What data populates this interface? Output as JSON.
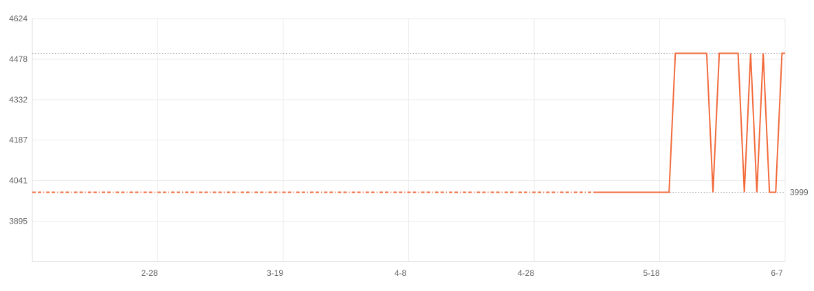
{
  "page": {
    "background_color": "#ffffff"
  },
  "chart_data": {
    "type": "line",
    "title": "",
    "xlabel": "",
    "ylabel": "",
    "grid": true,
    "legend": "none",
    "colors": {
      "line": "#f2693a",
      "grid_line": "#ebebeb",
      "axis_line": "#dcdcdc",
      "reference_line": "#999999",
      "tick_label": "#666666"
    },
    "y_axis": {
      "min": 3749,
      "max": 4624,
      "ticks": [
        {
          "label": "4624",
          "value": 4624
        },
        {
          "label": "4478",
          "value": 4478
        },
        {
          "label": "4332",
          "value": 4332
        },
        {
          "label": "4187",
          "value": 4187
        },
        {
          "label": "4041",
          "value": 4041
        },
        {
          "label": "3895",
          "value": 3895
        }
      ]
    },
    "x_axis": {
      "start_date": "2-8",
      "min_day": 0,
      "max_day": 120,
      "ticks": [
        {
          "label": "2-28",
          "day": 20
        },
        {
          "label": "3-19",
          "day": 40
        },
        {
          "label": "4-8",
          "day": 60
        },
        {
          "label": "4-28",
          "day": 80
        },
        {
          "label": "5-18",
          "day": 100
        },
        {
          "label": "6-7",
          "day": 120
        }
      ]
    },
    "reference_lines": [
      {
        "name": "max-price-line",
        "value": 4499,
        "from_day": 0,
        "to_day": 120,
        "style": "dotted",
        "label": ""
      },
      {
        "name": "min-price-line",
        "value": 3999,
        "from_day": 89.5,
        "to_day": 120,
        "style": "dotted",
        "label": "3999"
      }
    ],
    "annotations": [
      {
        "name": "min-price-label",
        "text": "3999",
        "value": 3999,
        "at_day": 120
      }
    ],
    "series": [
      {
        "name": "price-history-estimated",
        "style": "dashdot",
        "points": [
          {
            "day": 0,
            "date": "2-8",
            "price": 3999
          },
          {
            "day": 90,
            "date": "5-8",
            "price": 3999
          }
        ]
      },
      {
        "name": "price-history-actual",
        "style": "solid",
        "points": [
          {
            "day": 90,
            "date": "5-8",
            "price": 3999
          },
          {
            "day": 101.5,
            "date": "5-19",
            "price": 3999
          },
          {
            "day": 102.5,
            "date": "5-20",
            "price": 4499
          },
          {
            "day": 107.5,
            "date": "5-25",
            "price": 4499
          },
          {
            "day": 108.5,
            "date": "5-26",
            "price": 3999
          },
          {
            "day": 109.5,
            "date": "5-27",
            "price": 4499
          },
          {
            "day": 112.5,
            "date": "5-30",
            "price": 4499
          },
          {
            "day": 113.5,
            "date": "5-31",
            "price": 3999
          },
          {
            "day": 114.5,
            "date": "6-1",
            "price": 4499
          },
          {
            "day": 115.5,
            "date": "6-2",
            "price": 3999
          },
          {
            "day": 116.5,
            "date": "6-3",
            "price": 4499
          },
          {
            "day": 117.5,
            "date": "6-4",
            "price": 3999
          },
          {
            "day": 118.5,
            "date": "6-5",
            "price": 3999
          },
          {
            "day": 119.5,
            "date": "6-6",
            "price": 4499
          },
          {
            "day": 120,
            "date": "6-7",
            "price": 4499
          }
        ]
      }
    ]
  }
}
